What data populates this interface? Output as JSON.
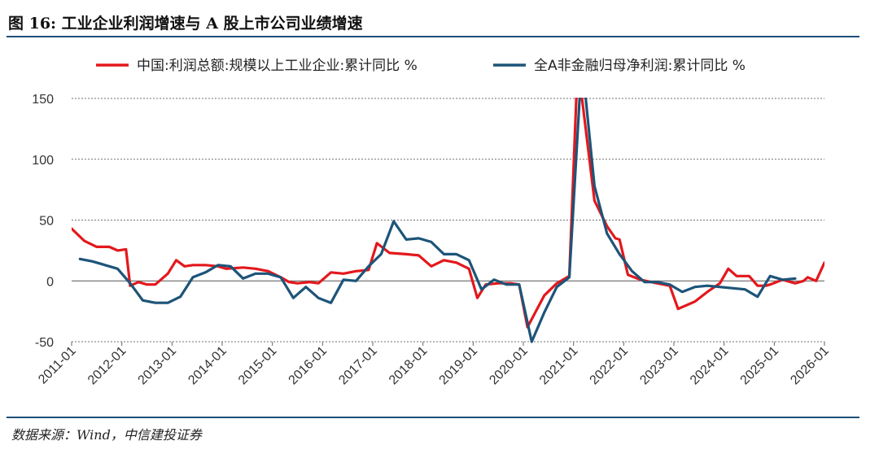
{
  "header": {
    "title": "图 16:  工业企业利润增速与 A 股上市公司业绩增速"
  },
  "footer": {
    "source": "数据来源：Wind，中信建投证券"
  },
  "colors": {
    "series1": "#e3181d",
    "series2": "#1d5479",
    "rule": "#1f4e79"
  },
  "chart_data": {
    "type": "line",
    "title": "",
    "xlabel": "",
    "ylabel": "",
    "ylim": [
      -50,
      150
    ],
    "yticks": [
      -50,
      0,
      50,
      100,
      150
    ],
    "xlim": [
      "2011-01",
      "2026-01"
    ],
    "xticks": [
      "2011-01",
      "2012-01",
      "2013-01",
      "2014-01",
      "2015-01",
      "2016-01",
      "2017-01",
      "2018-01",
      "2019-01",
      "2020-01",
      "2021-01",
      "2022-01",
      "2023-01",
      "2024-01",
      "2025-01",
      "2026-01"
    ],
    "grid": "horizontal dashed",
    "legend_position": "top",
    "series": [
      {
        "name": "中国:利润总额:规模以上工业企业:累计同比 %",
        "color": "#e3181d",
        "points": [
          [
            "2011-01",
            43
          ],
          [
            "2011-04",
            33
          ],
          [
            "2011-07",
            28
          ],
          [
            "2011-10",
            28
          ],
          [
            "2011-12",
            25
          ],
          [
            "2012-02",
            26
          ],
          [
            "2012-03",
            -4
          ],
          [
            "2012-05",
            -1
          ],
          [
            "2012-07",
            -3
          ],
          [
            "2012-09",
            -3
          ],
          [
            "2012-12",
            6
          ],
          [
            "2013-02",
            17
          ],
          [
            "2013-04",
            12
          ],
          [
            "2013-06",
            13
          ],
          [
            "2013-09",
            13
          ],
          [
            "2013-12",
            12
          ],
          [
            "2014-02",
            10
          ],
          [
            "2014-06",
            11
          ],
          [
            "2014-09",
            10
          ],
          [
            "2014-12",
            8
          ],
          [
            "2015-03",
            3
          ],
          [
            "2015-05",
            -1
          ],
          [
            "2015-07",
            -2
          ],
          [
            "2015-10",
            -1
          ],
          [
            "2015-12",
            -2
          ],
          [
            "2016-03",
            7
          ],
          [
            "2016-06",
            6
          ],
          [
            "2016-09",
            8
          ],
          [
            "2016-12",
            9
          ],
          [
            "2017-02",
            31
          ],
          [
            "2017-05",
            23
          ],
          [
            "2017-09",
            22
          ],
          [
            "2017-12",
            21
          ],
          [
            "2018-03",
            12
          ],
          [
            "2018-06",
            17
          ],
          [
            "2018-09",
            15
          ],
          [
            "2018-12",
            10
          ],
          [
            "2019-02",
            -14
          ],
          [
            "2019-04",
            -3
          ],
          [
            "2019-07",
            -2
          ],
          [
            "2019-10",
            -2
          ],
          [
            "2019-12",
            -3
          ],
          [
            "2020-02",
            -38
          ],
          [
            "2020-06",
            -12
          ],
          [
            "2020-09",
            -2
          ],
          [
            "2020-12",
            4
          ],
          [
            "2021-02",
            179
          ],
          [
            "2021-06",
            66
          ],
          [
            "2021-09",
            45
          ],
          [
            "2021-11",
            35
          ],
          [
            "2021-12",
            34
          ],
          [
            "2022-02",
            5
          ],
          [
            "2022-05",
            1
          ],
          [
            "2022-09",
            -2
          ],
          [
            "2022-12",
            -4
          ],
          [
            "2023-02",
            -23
          ],
          [
            "2023-06",
            -17
          ],
          [
            "2023-09",
            -9
          ],
          [
            "2023-12",
            -2
          ],
          [
            "2024-02",
            10
          ],
          [
            "2024-04",
            4
          ],
          [
            "2024-07",
            4
          ],
          [
            "2024-09",
            -4
          ],
          [
            "2024-11",
            -4
          ],
          [
            "2024-12",
            -3
          ],
          [
            "2025-03",
            1
          ],
          [
            "2025-06",
            -2
          ],
          [
            "2025-08",
            0
          ],
          [
            "2025-09",
            3
          ],
          [
            "2025-11",
            0
          ],
          [
            "2026-01",
            15
          ]
        ]
      },
      {
        "name": "全A非金融归母净利润:累计同比 %",
        "color": "#1d5479",
        "points": [
          [
            "2011-03",
            18
          ],
          [
            "2011-06",
            16
          ],
          [
            "2011-09",
            13
          ],
          [
            "2011-12",
            10
          ],
          [
            "2012-03",
            -2
          ],
          [
            "2012-06",
            -16
          ],
          [
            "2012-09",
            -18
          ],
          [
            "2012-12",
            -18
          ],
          [
            "2013-03",
            -13
          ],
          [
            "2013-06",
            3
          ],
          [
            "2013-09",
            7
          ],
          [
            "2013-12",
            13
          ],
          [
            "2014-03",
            12
          ],
          [
            "2014-06",
            2
          ],
          [
            "2014-09",
            6
          ],
          [
            "2014-12",
            6
          ],
          [
            "2015-03",
            3
          ],
          [
            "2015-06",
            -14
          ],
          [
            "2015-09",
            -5
          ],
          [
            "2015-12",
            -14
          ],
          [
            "2016-03",
            -18
          ],
          [
            "2016-06",
            1
          ],
          [
            "2016-09",
            0
          ],
          [
            "2016-12",
            12
          ],
          [
            "2017-03",
            22
          ],
          [
            "2017-06",
            49
          ],
          [
            "2017-09",
            34
          ],
          [
            "2017-12",
            35
          ],
          [
            "2018-03",
            32
          ],
          [
            "2018-06",
            22
          ],
          [
            "2018-09",
            22
          ],
          [
            "2018-12",
            17
          ],
          [
            "2019-03",
            -7
          ],
          [
            "2019-06",
            1
          ],
          [
            "2019-09",
            -3
          ],
          [
            "2019-12",
            -3
          ],
          [
            "2020-03",
            -50
          ],
          [
            "2020-06",
            -26
          ],
          [
            "2020-09",
            -5
          ],
          [
            "2020-12",
            3
          ],
          [
            "2021-03",
            182
          ],
          [
            "2021-06",
            78
          ],
          [
            "2021-09",
            39
          ],
          [
            "2021-12",
            22
          ],
          [
            "2022-03",
            8
          ],
          [
            "2022-06",
            -1
          ],
          [
            "2022-09",
            -1
          ],
          [
            "2022-12",
            -3
          ],
          [
            "2023-03",
            -9
          ],
          [
            "2023-06",
            -5
          ],
          [
            "2023-09",
            -4
          ],
          [
            "2023-12",
            -5
          ],
          [
            "2024-03",
            -6
          ],
          [
            "2024-06",
            -7
          ],
          [
            "2024-09",
            -13
          ],
          [
            "2024-12",
            4
          ],
          [
            "2025-03",
            1
          ],
          [
            "2025-06",
            2
          ]
        ]
      }
    ]
  }
}
